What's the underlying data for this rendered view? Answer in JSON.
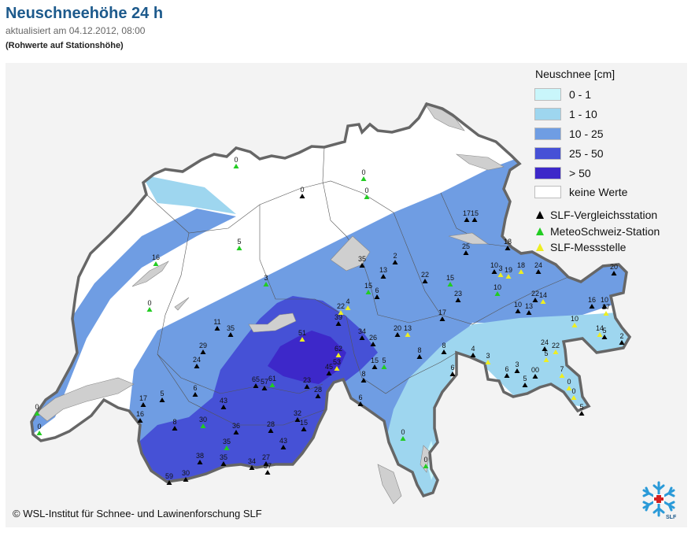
{
  "header": {
    "title": "Neuschneehöhe 24 h",
    "updated": "aktualisiert am 04.12.2012, 08:00",
    "note": "(Rohwerte auf Stationshöhe)"
  },
  "legend": {
    "title": "Neuschnee [cm]",
    "classes": [
      {
        "label": "0 - 1",
        "color": "#c9f6fb"
      },
      {
        "label": "1 - 10",
        "color": "#9ed6ef"
      },
      {
        "label": "10 - 25",
        "color": "#6f9de3"
      },
      {
        "label": "25 - 50",
        "color": "#4651d6"
      },
      {
        "label": "> 50",
        "color": "#3d28c9"
      },
      {
        "label": "keine Werte",
        "color": "#ffffff"
      }
    ],
    "symbols": [
      {
        "label": "SLF-Vergleichsstation",
        "color": "#000000"
      },
      {
        "label": "MeteoSchweiz-Station",
        "color": "#22cc22"
      },
      {
        "label": "SLF-Messstelle",
        "color": "#eeee22"
      }
    ]
  },
  "stations": [
    {
      "v": "0",
      "t": "g"
    },
    {
      "v": "0",
      "t": "g"
    },
    {
      "v": "0",
      "t": "g"
    },
    {
      "v": "0",
      "t": "k"
    },
    {
      "v": "0",
      "t": "g"
    },
    {
      "v": "16",
      "t": "g"
    },
    {
      "v": "5",
      "t": "g"
    },
    {
      "v": "3",
      "t": "g"
    },
    {
      "v": "0",
      "t": "g"
    },
    {
      "v": "17",
      "t": "k"
    },
    {
      "v": "15",
      "t": "k"
    },
    {
      "v": "25",
      "t": "k"
    },
    {
      "v": "18",
      "t": "k"
    },
    {
      "v": "35",
      "t": "k"
    },
    {
      "v": "13",
      "t": "k"
    },
    {
      "v": "2",
      "t": "k"
    },
    {
      "v": "22",
      "t": "k"
    },
    {
      "v": "15",
      "t": "g"
    },
    {
      "v": "23",
      "t": "k"
    },
    {
      "v": "10",
      "t": "k"
    },
    {
      "v": "3",
      "t": "y"
    },
    {
      "v": "19",
      "t": "y"
    },
    {
      "v": "18",
      "t": "y"
    },
    {
      "v": "24",
      "t": "k"
    },
    {
      "v": "20",
      "t": "k"
    },
    {
      "v": "15",
      "t": "g"
    },
    {
      "v": "6",
      "t": "k"
    },
    {
      "v": "4",
      "t": "y"
    },
    {
      "v": "10",
      "t": "g"
    },
    {
      "v": "17",
      "t": "k"
    },
    {
      "v": "10",
      "t": "k"
    },
    {
      "v": "13",
      "t": "k"
    },
    {
      "v": "22",
      "t": "k"
    },
    {
      "v": "14",
      "t": "y"
    },
    {
      "v": "16",
      "t": "k"
    },
    {
      "v": "10",
      "t": "k"
    },
    {
      "v": "27",
      "t": "y"
    },
    {
      "v": "11",
      "t": "k"
    },
    {
      "v": "35",
      "t": "k"
    },
    {
      "v": "39",
      "t": "k"
    },
    {
      "v": "22",
      "t": "y"
    },
    {
      "v": "20",
      "t": "k"
    },
    {
      "v": "13",
      "t": "y"
    },
    {
      "v": "10",
      "t": "y"
    },
    {
      "v": "14",
      "t": "y"
    },
    {
      "v": "2",
      "t": "k"
    },
    {
      "v": "29",
      "t": "k"
    },
    {
      "v": "24",
      "t": "k"
    },
    {
      "v": "51",
      "t": "y"
    },
    {
      "v": "34",
      "t": "k"
    },
    {
      "v": "26",
      "t": "k"
    },
    {
      "v": "62",
      "t": "y"
    },
    {
      "v": "8",
      "t": "k"
    },
    {
      "v": "8",
      "t": "k"
    },
    {
      "v": "4",
      "t": "k"
    },
    {
      "v": "3",
      "t": "y"
    },
    {
      "v": "6",
      "t": "k"
    },
    {
      "v": "5",
      "t": "y"
    },
    {
      "v": "45",
      "t": "k"
    },
    {
      "v": "53",
      "t": "y"
    },
    {
      "v": "15",
      "t": "k"
    },
    {
      "v": "5",
      "t": "g"
    },
    {
      "v": "8",
      "t": "k"
    },
    {
      "v": "6",
      "t": "k"
    },
    {
      "v": "6",
      "t": "k"
    },
    {
      "v": "3",
      "t": "k"
    },
    {
      "v": "5",
      "t": "k"
    },
    {
      "v": "00",
      "t": "k"
    },
    {
      "v": "7",
      "t": "y"
    },
    {
      "v": "0",
      "t": "y"
    },
    {
      "v": "0",
      "t": "y"
    },
    {
      "v": "5",
      "t": "k"
    },
    {
      "v": "6",
      "t": "k"
    },
    {
      "v": "24",
      "t": "k"
    },
    {
      "v": "22",
      "t": "y"
    },
    {
      "v": "5",
      "t": "k"
    },
    {
      "v": "65",
      "t": "k"
    },
    {
      "v": "57",
      "t": "k"
    },
    {
      "v": "61",
      "t": "g"
    },
    {
      "v": "23",
      "t": "k"
    },
    {
      "v": "28",
      "t": "k"
    },
    {
      "v": "17",
      "t": "k"
    },
    {
      "v": "8",
      "t": "k"
    },
    {
      "v": "16",
      "t": "k"
    },
    {
      "v": "0",
      "t": "g"
    },
    {
      "v": "43",
      "t": "k"
    },
    {
      "v": "30",
      "t": "g"
    },
    {
      "v": "36",
      "t": "k"
    },
    {
      "v": "28",
      "t": "k"
    },
    {
      "v": "32",
      "t": "k"
    },
    {
      "v": "15",
      "t": "k"
    },
    {
      "v": "35",
      "t": "g"
    },
    {
      "v": "43",
      "t": "k"
    },
    {
      "v": "38",
      "t": "k"
    },
    {
      "v": "35",
      "t": "k"
    },
    {
      "v": "27",
      "t": "k"
    },
    {
      "v": "34",
      "t": "k"
    },
    {
      "v": "37",
      "t": "k"
    },
    {
      "v": "30",
      "t": "k"
    },
    {
      "v": "59",
      "t": "k"
    },
    {
      "v": "0",
      "t": "g"
    },
    {
      "v": "0",
      "t": "g"
    },
    {
      "v": "5",
      "t": "k"
    }
  ],
  "copyright": "© WSL-Institut für Schnee- und Lawinenforschung SLF",
  "logo_text": "SLF"
}
